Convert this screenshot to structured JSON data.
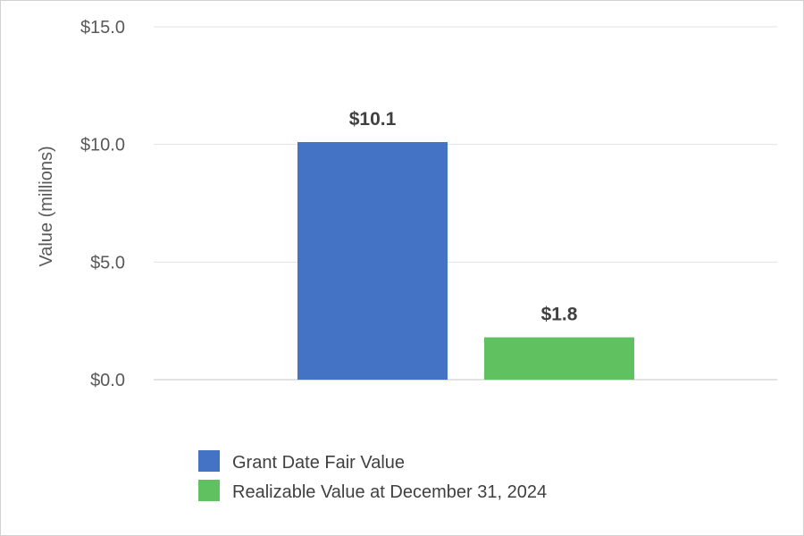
{
  "chart_data": {
    "type": "bar",
    "ylabel": "Value (millions)",
    "ylim": [
      0,
      15
    ],
    "yticks": [
      0,
      5,
      10,
      15
    ],
    "ytick_labels": [
      "$0.0",
      "$5.0",
      "$10.0",
      "$15.0"
    ],
    "grid": true,
    "legend_position": "bottom",
    "series": [
      {
        "name": "Grant Date Fair Value",
        "value": 10.1,
        "label": "$10.1",
        "color": "#4472C4"
      },
      {
        "name": "Realizable Value at December 31, 2024",
        "value": 1.8,
        "label": "$1.8",
        "color": "#5FC160"
      }
    ]
  }
}
